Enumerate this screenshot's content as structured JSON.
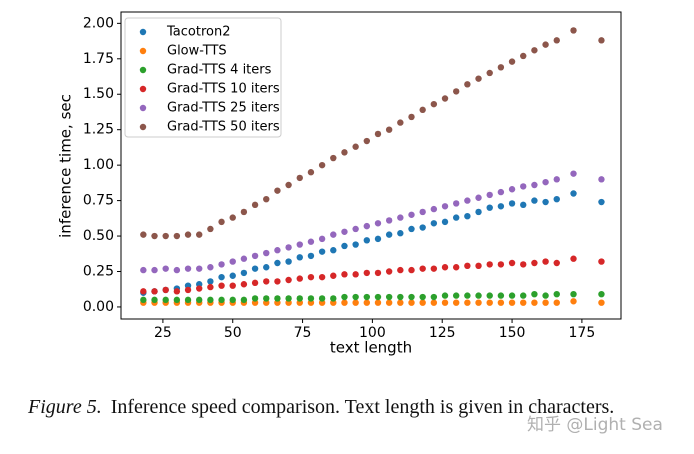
{
  "chart_data": {
    "type": "scatter",
    "x_label": "text length",
    "y_label": "inference time, sec",
    "xlim": [
      10,
      189
    ],
    "ylim": [
      -0.085,
      2.08
    ],
    "xticks": [
      25,
      50,
      75,
      100,
      125,
      150,
      175
    ],
    "yticks": [
      {
        "value": 0,
        "label": "0.00"
      },
      {
        "value": 0.25,
        "label": "0.25"
      },
      {
        "value": 0.5,
        "label": "0.50"
      },
      {
        "value": 0.75,
        "label": "0.75"
      },
      {
        "value": 1,
        "label": "1.00"
      },
      {
        "value": 1.25,
        "label": "1.25"
      },
      {
        "value": 1.5,
        "label": "1.50"
      },
      {
        "value": 1.75,
        "label": "1.75"
      },
      {
        "value": 2,
        "label": "2.00"
      }
    ],
    "legend": "upper left",
    "x": [
      18,
      22,
      26,
      30,
      34,
      38,
      42,
      46,
      50,
      54,
      58,
      62,
      66,
      70,
      74,
      78,
      82,
      86,
      90,
      94,
      98,
      102,
      106,
      110,
      114,
      118,
      122,
      126,
      130,
      134,
      138,
      142,
      146,
      150,
      154,
      158,
      162,
      166,
      172,
      182
    ],
    "series": [
      {
        "name": "Tacotron2",
        "color": "#1f77b4",
        "values": [
          0.1,
          0.11,
          0.12,
          0.13,
          0.15,
          0.16,
          0.18,
          0.21,
          0.22,
          0.24,
          0.27,
          0.28,
          0.31,
          0.32,
          0.35,
          0.36,
          0.39,
          0.4,
          0.43,
          0.44,
          0.47,
          0.48,
          0.51,
          0.52,
          0.55,
          0.56,
          0.59,
          0.6,
          0.63,
          0.64,
          0.67,
          0.7,
          0.71,
          0.73,
          0.72,
          0.75,
          0.74,
          0.76,
          0.8,
          0.74
        ]
      },
      {
        "name": "Glow-TTS",
        "color": "#ff7f0e",
        "values": [
          0.03,
          0.03,
          0.03,
          0.03,
          0.03,
          0.03,
          0.03,
          0.03,
          0.03,
          0.03,
          0.03,
          0.03,
          0.03,
          0.03,
          0.03,
          0.03,
          0.03,
          0.03,
          0.03,
          0.03,
          0.03,
          0.03,
          0.03,
          0.03,
          0.03,
          0.03,
          0.03,
          0.03,
          0.03,
          0.03,
          0.03,
          0.03,
          0.03,
          0.03,
          0.03,
          0.03,
          0.03,
          0.03,
          0.04,
          0.03
        ]
      },
      {
        "name": "Grad-TTS 4 iters",
        "color": "#2ca02c",
        "values": [
          0.05,
          0.05,
          0.05,
          0.05,
          0.05,
          0.05,
          0.05,
          0.05,
          0.05,
          0.05,
          0.06,
          0.06,
          0.06,
          0.06,
          0.06,
          0.06,
          0.06,
          0.06,
          0.07,
          0.07,
          0.07,
          0.07,
          0.07,
          0.07,
          0.07,
          0.07,
          0.07,
          0.08,
          0.08,
          0.08,
          0.08,
          0.08,
          0.08,
          0.08,
          0.08,
          0.09,
          0.08,
          0.09,
          0.09,
          0.09
        ]
      },
      {
        "name": "Grad-TTS 10 iters",
        "color": "#d62728",
        "values": [
          0.11,
          0.11,
          0.12,
          0.11,
          0.12,
          0.13,
          0.14,
          0.15,
          0.15,
          0.16,
          0.17,
          0.18,
          0.18,
          0.19,
          0.2,
          0.21,
          0.21,
          0.22,
          0.23,
          0.23,
          0.24,
          0.24,
          0.25,
          0.26,
          0.26,
          0.27,
          0.27,
          0.28,
          0.28,
          0.29,
          0.29,
          0.3,
          0.3,
          0.31,
          0.3,
          0.31,
          0.32,
          0.31,
          0.34,
          0.32
        ]
      },
      {
        "name": "Grad-TTS 25 iters",
        "color": "#9467bd",
        "values": [
          0.26,
          0.26,
          0.27,
          0.26,
          0.27,
          0.27,
          0.28,
          0.3,
          0.32,
          0.34,
          0.36,
          0.38,
          0.4,
          0.42,
          0.44,
          0.46,
          0.48,
          0.51,
          0.53,
          0.55,
          0.57,
          0.59,
          0.61,
          0.63,
          0.65,
          0.67,
          0.69,
          0.71,
          0.73,
          0.75,
          0.77,
          0.79,
          0.81,
          0.83,
          0.85,
          0.86,
          0.88,
          0.9,
          0.94,
          0.9
        ]
      },
      {
        "name": "Grad-TTS 50 iters",
        "color": "#8c564b",
        "values": [
          0.51,
          0.5,
          0.5,
          0.5,
          0.51,
          0.51,
          0.55,
          0.6,
          0.63,
          0.67,
          0.72,
          0.76,
          0.82,
          0.86,
          0.91,
          0.95,
          1.0,
          1.05,
          1.09,
          1.13,
          1.17,
          1.22,
          1.25,
          1.3,
          1.34,
          1.39,
          1.43,
          1.47,
          1.52,
          1.57,
          1.61,
          1.65,
          1.69,
          1.73,
          1.77,
          1.81,
          1.85,
          1.88,
          1.95,
          1.88
        ]
      }
    ]
  },
  "caption": {
    "label": "Figure 5.",
    "text": "Inference speed comparison.  Text length is given in characters."
  },
  "watermark": "知乎 @Light Sea"
}
